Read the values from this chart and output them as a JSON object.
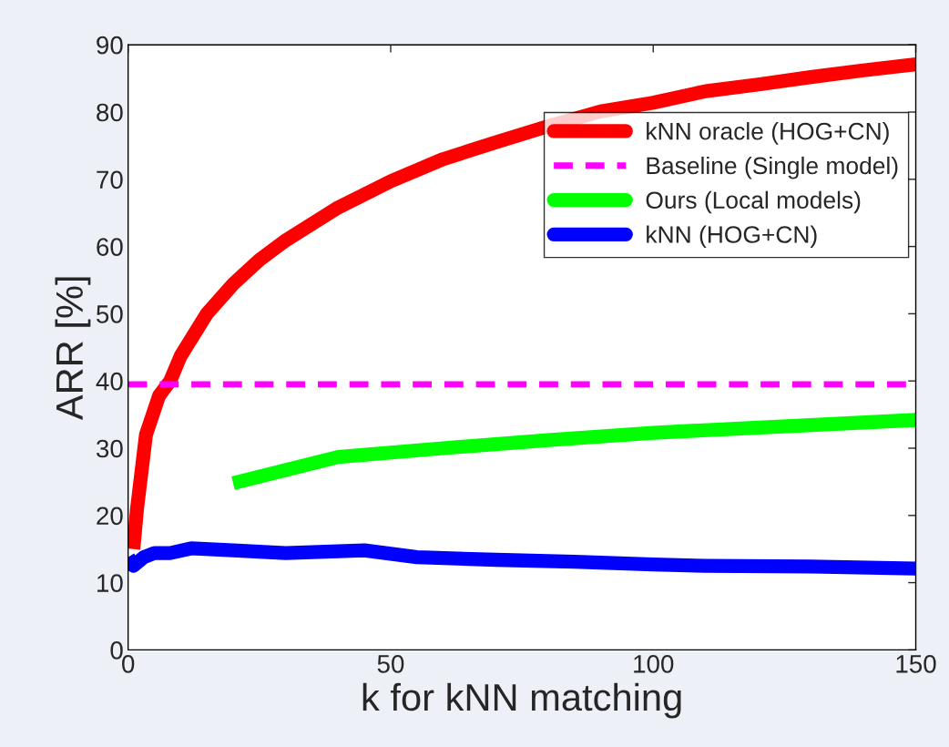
{
  "chart_data": {
    "type": "line",
    "xlabel": "k for kNN matching",
    "ylabel": "ARR [%]",
    "xlim": [
      0,
      150
    ],
    "xticks": [
      0,
      50,
      100,
      150
    ],
    "ylim": [
      0,
      90
    ],
    "yticks": [
      0,
      10,
      20,
      30,
      40,
      50,
      60,
      70,
      80,
      90
    ],
    "grid": false,
    "legend": "top right",
    "marker": "none",
    "series": [
      {
        "name": "kNN oracle (HOG+CN)",
        "color": "#ff0000",
        "line_style": "solid",
        "x": [
          1,
          1.7,
          3.4,
          5.9,
          8,
          10,
          15,
          20,
          25,
          30,
          40,
          50,
          60,
          70,
          80,
          90,
          100,
          110,
          120,
          130,
          140,
          150
        ],
        "values": [
          15,
          21,
          32,
          37.8,
          40,
          43.7,
          50,
          54.4,
          58,
          60.9,
          65.8,
          69.7,
          73,
          75.5,
          77.9,
          80.1,
          81.4,
          83.1,
          84.1,
          85.2,
          86.2,
          87.1
        ]
      },
      {
        "name": "Baseline (Single model)",
        "color": "#ff00ff",
        "line_style": "dashed",
        "x": [
          0,
          150
        ],
        "values": [
          39.5,
          39.5
        ]
      },
      {
        "name": "Ours (Local models)",
        "color": "#00ff00",
        "line_style": "solid",
        "x": [
          20,
          40,
          60,
          80,
          100,
          150
        ],
        "values": [
          24.8,
          28.7,
          30,
          31.2,
          32.3,
          34.2
        ]
      },
      {
        "name": "kNN (HOG+CN)",
        "color": "#0000ff",
        "line_style": "solid",
        "x": [
          0,
          1,
          3,
          5,
          8,
          12,
          20,
          30,
          45,
          55,
          70,
          85,
          100,
          110,
          130,
          150
        ],
        "values": [
          13.8,
          12.5,
          13.8,
          14.4,
          14.4,
          15.1,
          14.8,
          14.4,
          14.8,
          13.8,
          13.4,
          13.1,
          12.7,
          12.5,
          12.4,
          12.1
        ]
      }
    ]
  }
}
